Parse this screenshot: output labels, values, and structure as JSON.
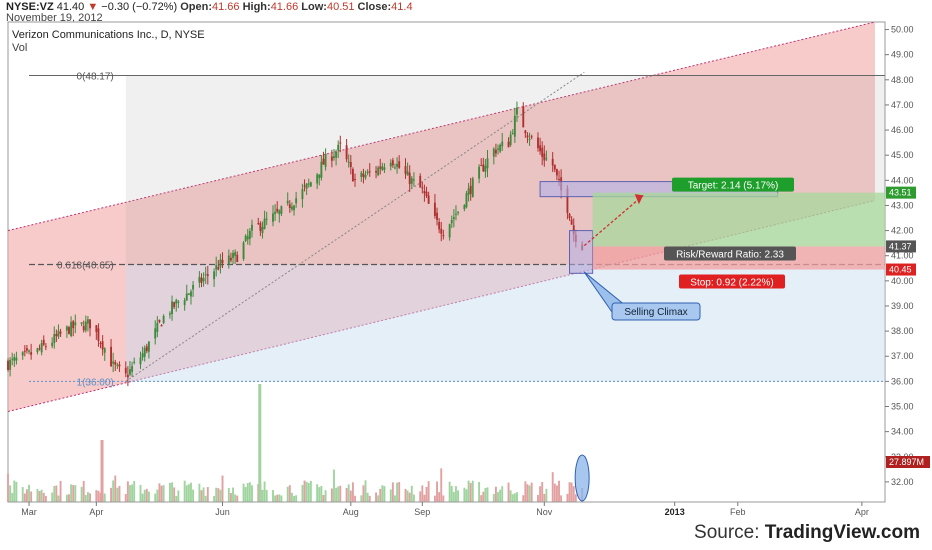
{
  "header": {
    "symbol": "NYSE:VZ",
    "last": "41.40",
    "change_arrow": "▼",
    "change": "−0.30 (−0.72%)",
    "open_label": "Open:",
    "open": "41.66",
    "high_label": "High:",
    "high": "41.66",
    "low_label": "Low:",
    "low": "40.51",
    "close_label": "Close:",
    "close": "41.4",
    "date": "November 19, 2012"
  },
  "chart_data": {
    "type": "candlestick",
    "title": "Verizon Communications Inc., D, NYSE",
    "volume_label": "Vol",
    "x_ticks": [
      "Mar",
      "Apr",
      "Jun",
      "Aug",
      "Sep",
      "Nov",
      "2013",
      "Feb",
      "Apr"
    ],
    "y_ticks": [
      32,
      33,
      34,
      35,
      36,
      37,
      38,
      39,
      40,
      41,
      42,
      43,
      44,
      45,
      46,
      47,
      48,
      49,
      50
    ],
    "ylim": [
      31.2,
      50.3
    ],
    "price_keypoints": [
      {
        "date": "2012-02-20",
        "close": 36.7
      },
      {
        "date": "2012-03-05",
        "close": 37.2
      },
      {
        "date": "2012-03-20",
        "close": 38.1
      },
      {
        "date": "2012-03-30",
        "close": 38.3
      },
      {
        "date": "2012-04-05",
        "close": 37.5
      },
      {
        "date": "2012-04-10",
        "close": 36.6
      },
      {
        "date": "2012-04-16",
        "close": 36.2
      },
      {
        "date": "2012-04-25",
        "close": 37.2
      },
      {
        "date": "2012-05-05",
        "close": 38.7
      },
      {
        "date": "2012-05-18",
        "close": 39.7
      },
      {
        "date": "2012-05-30",
        "close": 40.6
      },
      {
        "date": "2012-06-08",
        "close": 41.0
      },
      {
        "date": "2012-06-15",
        "close": 42.0
      },
      {
        "date": "2012-06-30",
        "close": 42.8
      },
      {
        "date": "2012-07-12",
        "close": 43.8
      },
      {
        "date": "2012-07-20",
        "close": 44.8
      },
      {
        "date": "2012-07-27",
        "close": 45.3
      },
      {
        "date": "2012-08-03",
        "close": 44.0
      },
      {
        "date": "2012-08-13",
        "close": 44.4
      },
      {
        "date": "2012-08-20",
        "close": 44.9
      },
      {
        "date": "2012-08-27",
        "close": 44.2
      },
      {
        "date": "2012-09-04",
        "close": 43.6
      },
      {
        "date": "2012-09-10",
        "close": 42.4
      },
      {
        "date": "2012-09-14",
        "close": 42.0
      },
      {
        "date": "2012-09-21",
        "close": 42.8
      },
      {
        "date": "2012-10-01",
        "close": 44.3
      },
      {
        "date": "2012-10-08",
        "close": 45.2
      },
      {
        "date": "2012-10-15",
        "close": 45.5
      },
      {
        "date": "2012-10-19",
        "close": 46.7
      },
      {
        "date": "2012-10-24",
        "close": 45.9
      },
      {
        "date": "2012-10-31",
        "close": 45.0
      },
      {
        "date": "2012-11-05",
        "close": 44.6
      },
      {
        "date": "2012-11-08",
        "close": 43.8
      },
      {
        "date": "2012-11-13",
        "close": 42.7
      },
      {
        "date": "2012-11-15",
        "close": 41.9
      },
      {
        "date": "2012-11-19",
        "close": 41.4
      }
    ],
    "fib_levels": [
      {
        "label": "0(48.17)",
        "value": 48.17
      },
      {
        "label": "0.618(40.65)",
        "value": 40.65
      },
      {
        "label": "1(36.00)",
        "value": 36.0
      }
    ],
    "price_tags": [
      {
        "label": "43.51",
        "value": 43.51,
        "color": "#2e9b2e"
      },
      {
        "label": "41.37",
        "value": 41.37,
        "color": "#555555"
      },
      {
        "label": "40.45",
        "value": 40.45,
        "color": "#dd2222"
      },
      {
        "label": "27.897M",
        "value": 32.5,
        "color": "#b02020"
      }
    ],
    "annotations": {
      "target": "Target: 2.14 (5.17%)",
      "stop": "Stop: 0.92 (2.22%)",
      "ratio": "Risk/Reward Ratio: 2.33",
      "callout": "Selling Climax"
    },
    "colors": {
      "up": "#3d8a3d",
      "down": "#b03030",
      "channel": "#f4a8a8",
      "target_zone": "#a7d89b",
      "stop_zone": "#f0a0a0"
    }
  },
  "source": {
    "prefix": "Source: ",
    "name": "TradingView.com"
  }
}
